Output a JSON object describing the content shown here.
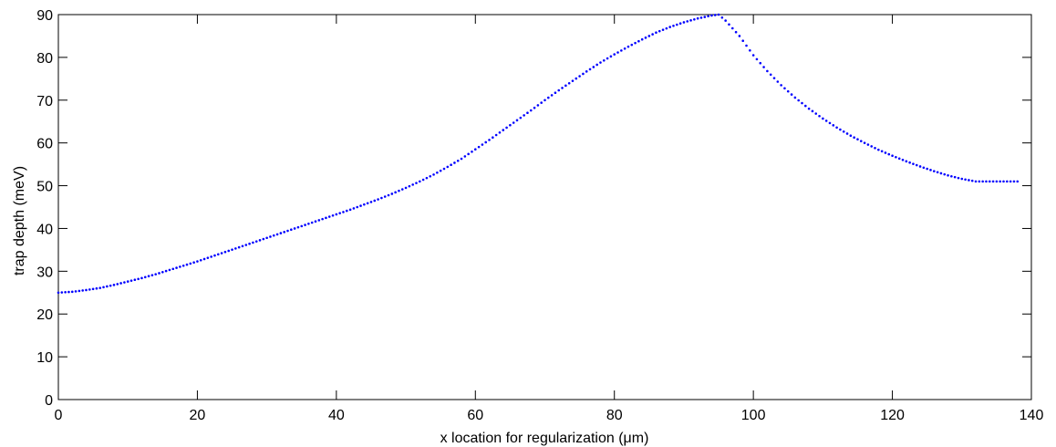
{
  "chart_data": {
    "type": "scatter",
    "title": "",
    "xlabel": "x location for regularization (μm)",
    "ylabel": "trap depth (meV)",
    "xlim": [
      0,
      140
    ],
    "ylim": [
      0,
      90
    ],
    "xticks": [
      0,
      20,
      40,
      60,
      80,
      100,
      120,
      140
    ],
    "yticks": [
      0,
      10,
      20,
      30,
      40,
      50,
      60,
      70,
      80,
      90
    ],
    "grid": false,
    "marker_style": "dotted",
    "series": [
      {
        "color": "#0000ff",
        "x": [
          0,
          2,
          4,
          6,
          8,
          10,
          12,
          14,
          16,
          18,
          20,
          22,
          24,
          26,
          28,
          30,
          32,
          34,
          36,
          38,
          40,
          42,
          44,
          46,
          48,
          50,
          52,
          54,
          56,
          58,
          60,
          62,
          64,
          66,
          68,
          70,
          72,
          74,
          76,
          78,
          80,
          82,
          84,
          86,
          88,
          90,
          92,
          94,
          95,
          96,
          98,
          100,
          102,
          104,
          106,
          108,
          110,
          112,
          114,
          116,
          118,
          120,
          122,
          124,
          126,
          128,
          130,
          132,
          134,
          136,
          138
        ],
        "y": [
          25.0,
          25.2,
          25.6,
          26.1,
          26.8,
          27.6,
          28.4,
          29.3,
          30.3,
          31.3,
          32.3,
          33.4,
          34.5,
          35.6,
          36.7,
          37.8,
          38.9,
          40.0,
          41.1,
          42.2,
          43.3,
          44.4,
          45.6,
          46.8,
          48.1,
          49.5,
          51.0,
          52.6,
          54.4,
          56.3,
          58.5,
          60.7,
          63.0,
          65.3,
          67.6,
          70.0,
          72.3,
          74.5,
          76.7,
          78.8,
          80.7,
          82.5,
          84.2,
          85.8,
          87.1,
          88.2,
          89.1,
          89.8,
          90.0,
          88.6,
          85.0,
          80.5,
          76.8,
          73.5,
          70.6,
          68.0,
          65.7,
          63.6,
          61.7,
          60.0,
          58.4,
          57.0,
          55.7,
          54.5,
          53.4,
          52.4,
          51.6,
          51.0,
          51.0,
          51.0,
          51.0
        ]
      }
    ]
  }
}
